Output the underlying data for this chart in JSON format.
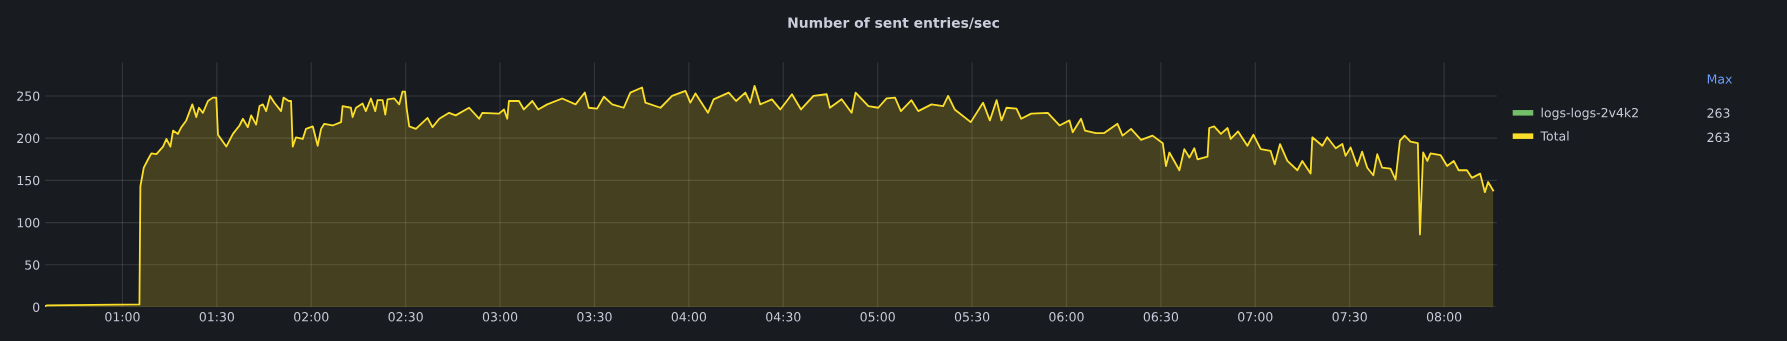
{
  "chart_data": {
    "type": "area",
    "title": "Number of sent entries/sec",
    "xlim": [
      0.59,
      8.28
    ],
    "ylim": [
      0,
      290
    ],
    "xticks": [
      {
        "value": 1,
        "label": "01:00"
      },
      {
        "value": 1.5,
        "label": "01:30"
      },
      {
        "value": 2,
        "label": "02:00"
      },
      {
        "value": 2.5,
        "label": "02:30"
      },
      {
        "value": 3,
        "label": "03:00"
      },
      {
        "value": 3.5,
        "label": "03:30"
      },
      {
        "value": 4,
        "label": "04:00"
      },
      {
        "value": 4.5,
        "label": "04:30"
      },
      {
        "value": 5,
        "label": "05:00"
      },
      {
        "value": 5.5,
        "label": "05:30"
      },
      {
        "value": 6,
        "label": "06:00"
      },
      {
        "value": 6.5,
        "label": "06:30"
      },
      {
        "value": 7,
        "label": "07:00"
      },
      {
        "value": 7.5,
        "label": "07:30"
      },
      {
        "value": 8,
        "label": "08:00"
      }
    ],
    "yticks": [
      0,
      50,
      100,
      150,
      200,
      250
    ],
    "grid": true,
    "legend": "right",
    "marker": "none",
    "line_style": "solid",
    "annotations": [
      "Max",
      "263",
      "263"
    ],
    "series": [
      {
        "name": "logs-logs-2v4k2",
        "color": "#73bf69"
      },
      {
        "name": "Total",
        "color": "#fade2a",
        "x": [
          0.59,
          0.6,
          1.09,
          1.095,
          1.113,
          1.136,
          1.153,
          1.18,
          1.215,
          1.233,
          1.254,
          1.268,
          1.294,
          1.312,
          1.338,
          1.37,
          1.391,
          1.405,
          1.426,
          1.453,
          1.479,
          1.497,
          1.506,
          1.55,
          1.585,
          1.62,
          1.638,
          1.664,
          1.682,
          1.708,
          1.726,
          1.744,
          1.761,
          1.782,
          1.805,
          1.84,
          1.853,
          1.881,
          1.893,
          1.902,
          1.919,
          1.955,
          1.972,
          2.008,
          2.034,
          2.052,
          2.069,
          2.113,
          2.158,
          2.166,
          2.21,
          2.219,
          2.237,
          2.272,
          2.289,
          2.316,
          2.339,
          2.351,
          2.378,
          2.392,
          2.404,
          2.44,
          2.466,
          2.483,
          2.497,
          2.505,
          2.519,
          2.554,
          2.616,
          2.642,
          2.678,
          2.73,
          2.765,
          2.836,
          2.889,
          2.906,
          2.994,
          3.021,
          3.038,
          3.047,
          3.1,
          3.126,
          3.171,
          3.202,
          3.25,
          3.329,
          3.4,
          3.449,
          3.47,
          3.514,
          3.55,
          3.594,
          3.655,
          3.69,
          3.752,
          3.77,
          3.85,
          3.911,
          3.982,
          4.008,
          4.035,
          4.101,
          4.131,
          4.211,
          4.25,
          4.299,
          4.325,
          4.348,
          4.378,
          4.44,
          4.484,
          4.546,
          4.594,
          4.66,
          4.73,
          4.747,
          4.809,
          4.862,
          4.883,
          4.951,
          5.003,
          5.047,
          5.092,
          5.123,
          5.179,
          5.215,
          5.285,
          5.347,
          5.373,
          5.408,
          5.493,
          5.558,
          5.594,
          5.63,
          5.656,
          5.682,
          5.735,
          5.76,
          5.813,
          5.901,
          5.963,
          6.016,
          6.033,
          6.077,
          6.098,
          6.156,
          6.2,
          6.27,
          6.297,
          6.342,
          6.395,
          6.456,
          6.51,
          6.527,
          6.545,
          6.598,
          6.624,
          6.651,
          6.677,
          6.694,
          6.747,
          6.756,
          6.782,
          6.818,
          6.853,
          6.87,
          6.909,
          6.958,
          6.99,
          7.029,
          7.081,
          7.103,
          7.131,
          7.17,
          7.223,
          7.249,
          7.293,
          7.302,
          7.355,
          7.381,
          7.426,
          7.461,
          7.478,
          7.505,
          7.54,
          7.566,
          7.593,
          7.625,
          7.646,
          7.672,
          7.716,
          7.743,
          7.766,
          7.791,
          7.822,
          7.861,
          7.872,
          7.889,
          7.911,
          7.928,
          7.981,
          8.016,
          8.051,
          8.077,
          8.121,
          8.147,
          8.191,
          8.216,
          8.233,
          8.26
        ],
        "values": [
          1,
          2,
          3,
          143,
          165,
          175,
          182,
          181,
          190,
          199,
          190,
          209,
          205,
          213,
          221,
          240,
          225,
          236,
          230,
          244,
          248,
          248,
          204,
          190,
          205,
          215,
          223,
          213,
          227,
          216,
          238,
          240,
          232,
          250,
          242,
          232,
          248,
          244,
          244,
          190,
          201,
          199,
          211,
          214,
          191,
          211,
          217,
          215,
          219,
          238,
          236,
          225,
          236,
          241,
          232,
          247,
          232,
          245,
          245,
          228,
          246,
          247,
          240,
          255,
          255,
          236,
          214,
          211,
          224,
          213,
          223,
          230,
          227,
          236,
          223,
          230,
          229,
          234,
          223,
          244,
          244,
          234,
          244,
          234,
          240,
          247,
          240,
          254,
          236,
          235,
          249,
          240,
          236,
          254,
          260,
          242,
          236,
          250,
          256,
          242,
          253,
          230,
          246,
          254,
          244,
          254,
          242,
          262,
          240,
          246,
          234,
          252,
          234,
          250,
          252,
          236,
          246,
          230,
          254,
          238,
          236,
          247,
          248,
          232,
          245,
          232,
          240,
          238,
          250,
          234,
          219,
          242,
          221,
          245,
          221,
          236,
          235,
          223,
          229,
          230,
          215,
          221,
          207,
          223,
          209,
          206,
          206,
          217,
          203,
          211,
          198,
          203,
          194,
          167,
          183,
          162,
          187,
          177,
          188,
          175,
          178,
          212,
          214,
          205,
          212,
          199,
          208,
          191,
          204,
          187,
          185,
          169,
          193,
          173,
          162,
          173,
          158,
          201,
          191,
          201,
          188,
          193,
          179,
          189,
          167,
          184,
          165,
          156,
          181,
          165,
          164,
          151,
          197,
          203,
          196,
          194,
          86,
          183,
          173,
          182,
          180,
          167,
          173,
          162,
          162,
          153,
          158,
          136,
          148,
          138
        ]
      }
    ]
  }
}
